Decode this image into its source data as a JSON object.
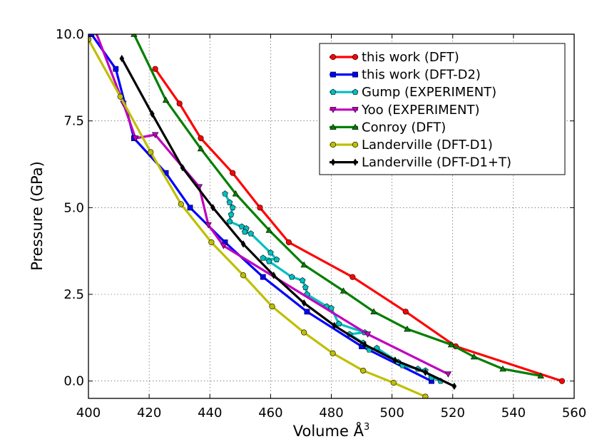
{
  "chart_data": {
    "type": "line",
    "title": "",
    "xlabel": "Volume",
    "xlabel_unit": "Å",
    "xlabel_exp": "3",
    "ylabel": "Pressure (GPa)",
    "xlim": [
      400,
      560
    ],
    "ylim": [
      -0.5,
      10.0
    ],
    "xticks": [
      400,
      420,
      440,
      460,
      480,
      500,
      520,
      540,
      560
    ],
    "yticks": [
      0.0,
      2.5,
      5.0,
      7.5,
      10.0
    ],
    "xtick_labels": [
      "400",
      "420",
      "440",
      "460",
      "480",
      "500",
      "520",
      "540",
      "560"
    ],
    "ytick_labels": [
      "0.0",
      "2.5",
      "5.0",
      "7.5",
      "10.0"
    ],
    "grid": true,
    "legend_position": "top-right",
    "series": [
      {
        "name": "this work (DFT)",
        "color": "#ff0000",
        "marker": "circle",
        "x": [
          422,
          430,
          437,
          447.5,
          456.5,
          466,
          487,
          504.5,
          521,
          556
        ],
        "y": [
          9,
          8,
          7,
          6,
          5,
          4,
          3,
          2,
          1,
          0
        ]
      },
      {
        "name": "this work (DFT-D2)",
        "color": "#0000ff",
        "marker": "square",
        "x": [
          401,
          409,
          415,
          425.5,
          433.5,
          445,
          457.5,
          472,
          490,
          513
        ],
        "y": [
          10,
          9,
          7,
          6,
          5,
          4,
          3,
          2,
          1,
          0
        ]
      },
      {
        "name": "Gump (EXPERIMENT)",
        "color": "#00bfbf",
        "marker": "pentagon",
        "x": [
          445,
          446.5,
          447.5,
          447,
          446.5,
          450.5,
          452,
          451.5,
          453.5,
          460,
          462,
          457.5,
          459.5,
          467,
          470.5,
          471.5,
          472,
          478.5,
          480,
          482.5,
          491,
          486,
          490.5,
          492.5,
          495,
          502,
          503.5,
          508.5,
          511,
          513,
          516
        ],
        "y": [
          5.4,
          5.15,
          5.0,
          4.8,
          4.6,
          4.45,
          4.4,
          4.3,
          4.25,
          3.7,
          3.5,
          3.55,
          3.45,
          3.0,
          2.9,
          2.7,
          2.5,
          2.15,
          2.1,
          1.65,
          1.4,
          1.35,
          1.1,
          0.9,
          0.95,
          0.55,
          0.45,
          0.35,
          0.3,
          0.1,
          0.0
        ]
      },
      {
        "name": "Yoo (EXPERIMENT)",
        "color": "#bf00bf",
        "marker": "triangle-down",
        "x": [
          402.5,
          411.5,
          415.5,
          422,
          436.5,
          439.5,
          444.5,
          492,
          518.5
        ],
        "y": [
          10.05,
          8.0,
          7.0,
          7.1,
          5.6,
          4.5,
          3.9,
          1.35,
          0.2
        ]
      },
      {
        "name": "Conroy (DFT)",
        "color": "#007f00",
        "marker": "triangle-up",
        "x": [
          415,
          425.5,
          437,
          448.5,
          459.5,
          471,
          484,
          494,
          505,
          519.5,
          527,
          536.5,
          549
        ],
        "y": [
          10.0,
          8.1,
          6.7,
          5.4,
          4.35,
          3.35,
          2.6,
          2.0,
          1.5,
          1.05,
          0.7,
          0.35,
          0.15
        ]
      },
      {
        "name": "Landerville (DFT-D1)",
        "color": "#bfbf00",
        "marker": "circle",
        "x": [
          400,
          410.5,
          420.5,
          430.5,
          440.5,
          451,
          460.5,
          471,
          480.5,
          490.5,
          500.5,
          511
        ],
        "y": [
          9.85,
          8.2,
          6.6,
          5.1,
          4.0,
          3.05,
          2.15,
          1.4,
          0.8,
          0.3,
          -0.05,
          -0.45
        ]
      },
      {
        "name": "Landerville (DFT-D1+T)",
        "color": "#000000",
        "marker": "diamond",
        "x": [
          411,
          421,
          431,
          441,
          451,
          461,
          471,
          481,
          491,
          501,
          511,
          520.5
        ],
        "y": [
          9.3,
          7.7,
          6.15,
          5.0,
          3.95,
          3.05,
          2.25,
          1.6,
          1.05,
          0.6,
          0.25,
          -0.15
        ]
      }
    ]
  }
}
